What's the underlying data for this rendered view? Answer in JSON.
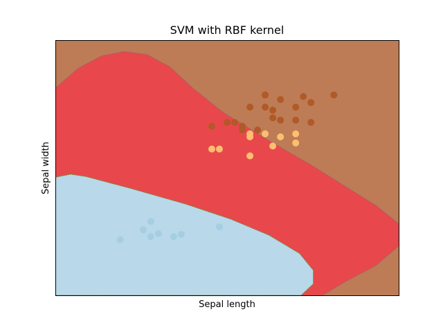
{
  "chart_data": {
    "type": "scatter",
    "title": "SVM with RBF kernel",
    "xlabel": "Sepal length",
    "ylabel": "Sepal width",
    "xticks_visible": false,
    "yticks_visible": false,
    "grid": false,
    "xlim": [
      0,
      45
    ],
    "ylim": [
      0,
      33.5
    ],
    "colors": {
      "region_class_0": "#b9d8e9",
      "region_class_1": "#e8484b",
      "region_class_2": "#bd7c55",
      "point_class_0": "#a6cee3",
      "point_class_1": "#fdbf6f",
      "point_class_2": "#b15928",
      "boundary_0_1": "#6a8b3a",
      "boundary_1_2": "#a05b6e"
    },
    "decision_regions": [
      {
        "class": 0,
        "outline": [
          [
            0,
            0
          ],
          [
            0,
            15.5
          ],
          [
            2,
            15.9
          ],
          [
            4,
            15.6
          ],
          [
            10,
            14.0
          ],
          [
            17,
            12.0
          ],
          [
            23,
            10.0
          ],
          [
            28,
            7.9
          ],
          [
            32,
            5.5
          ],
          [
            33.8,
            3.3
          ],
          [
            33.8,
            1.5
          ],
          [
            32.2,
            0
          ]
        ]
      },
      {
        "class": 1,
        "outline": [
          [
            0,
            0
          ],
          [
            0,
            27.2
          ],
          [
            3,
            29.8
          ],
          [
            6,
            31.4
          ],
          [
            9,
            32.0
          ],
          [
            12,
            31.6
          ],
          [
            15,
            30.0
          ],
          [
            18,
            27.2
          ],
          [
            22,
            24.0
          ],
          [
            28,
            20.3
          ],
          [
            34,
            16.8
          ],
          [
            38,
            14.3
          ],
          [
            42,
            11.8
          ],
          [
            45,
            9.4
          ],
          [
            45,
            6.5
          ],
          [
            42,
            3.9
          ],
          [
            38,
            1.8
          ],
          [
            35,
            0
          ]
        ]
      }
    ],
    "series": [
      {
        "class": 0,
        "points": [
          [
            8.5,
            7.3
          ],
          [
            11.5,
            8.6
          ],
          [
            12.5,
            9.7
          ],
          [
            12.5,
            7.7
          ],
          [
            13.5,
            8.1
          ],
          [
            15.5,
            7.7
          ],
          [
            16.5,
            8.0
          ],
          [
            21.5,
            9.0
          ]
        ]
      },
      {
        "class": 1,
        "points": [
          [
            20.5,
            19.2
          ],
          [
            21.5,
            19.2
          ],
          [
            25.5,
            21.2
          ],
          [
            25.5,
            20.8
          ],
          [
            25.5,
            18.3
          ],
          [
            27.5,
            21.2
          ],
          [
            28.5,
            19.6
          ],
          [
            29.5,
            20.8
          ],
          [
            31.5,
            21.2
          ],
          [
            31.5,
            20.0
          ]
        ]
      },
      {
        "class": 2,
        "points": [
          [
            20.5,
            22.2
          ],
          [
            22.5,
            22.7
          ],
          [
            23.5,
            22.7
          ],
          [
            24.5,
            22.2
          ],
          [
            24.5,
            21.7
          ],
          [
            25.5,
            24.7
          ],
          [
            26.5,
            21.7
          ],
          [
            27.5,
            26.3
          ],
          [
            27.5,
            24.7
          ],
          [
            28.5,
            24.3
          ],
          [
            28.5,
            23.3
          ],
          [
            29.5,
            25.7
          ],
          [
            29.5,
            23.0
          ],
          [
            31.5,
            24.7
          ],
          [
            31.5,
            23.0
          ],
          [
            32.5,
            26.1
          ],
          [
            33.5,
            25.3
          ],
          [
            33.5,
            22.7
          ],
          [
            36.5,
            26.3
          ]
        ]
      }
    ]
  }
}
